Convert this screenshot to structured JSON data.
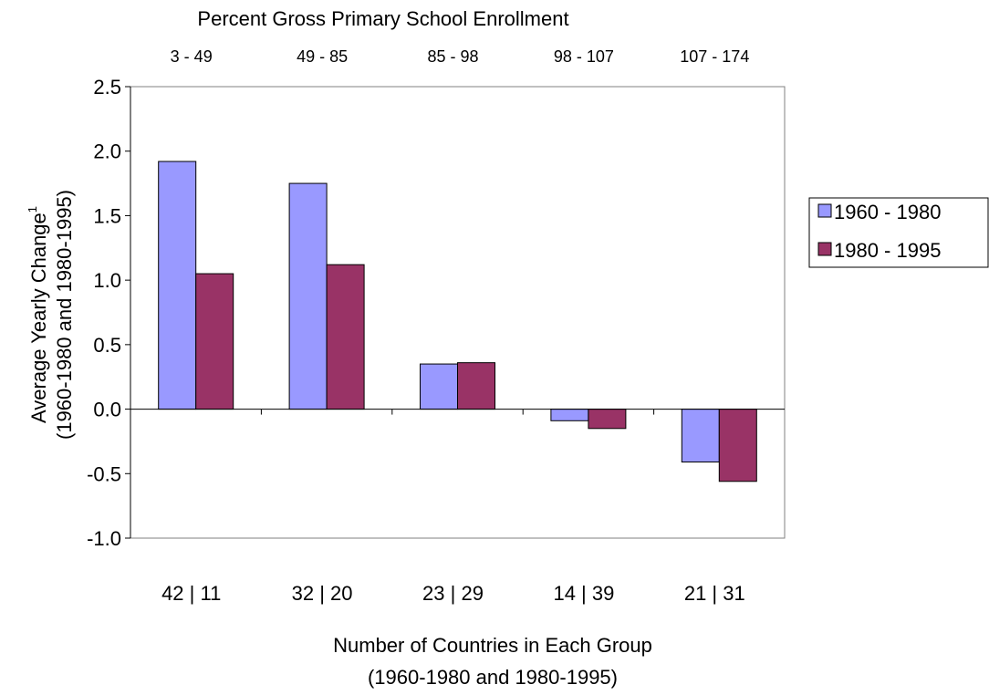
{
  "chart_data": {
    "type": "bar",
    "top_title": "Percent Gross Primary School Enrollment",
    "top_categories": [
      "3 - 49",
      "49 - 85",
      "85 - 98",
      "98 - 107",
      "107 - 174"
    ],
    "categories": [
      "42 | 11",
      "32 | 20",
      "23 | 29",
      "14 | 39",
      "21 | 31"
    ],
    "series": [
      {
        "name": "1960 - 1980",
        "color": "#9999ff",
        "values": [
          1.92,
          1.75,
          0.35,
          -0.09,
          -0.41
        ]
      },
      {
        "name": "1980 - 1995",
        "color": "#993366",
        "values": [
          1.05,
          1.12,
          0.36,
          -0.15,
          -0.56
        ]
      }
    ],
    "ylabel_line1": "Average Yearly Change",
    "ylabel_superscript": "1",
    "ylabel_line2": "(1960-1980 and 1980-1995)",
    "xlabel_line1": "Number of Countries in Each Group",
    "xlabel_line2": "(1960-1980 and 1980-1995)",
    "ylim": [
      -1.0,
      2.5
    ],
    "yticks": [
      "-1.0",
      "-0.5",
      "0.0",
      "0.5",
      "1.0",
      "1.5",
      "2.0",
      "2.5"
    ],
    "grid": false,
    "legend_position": "right"
  }
}
